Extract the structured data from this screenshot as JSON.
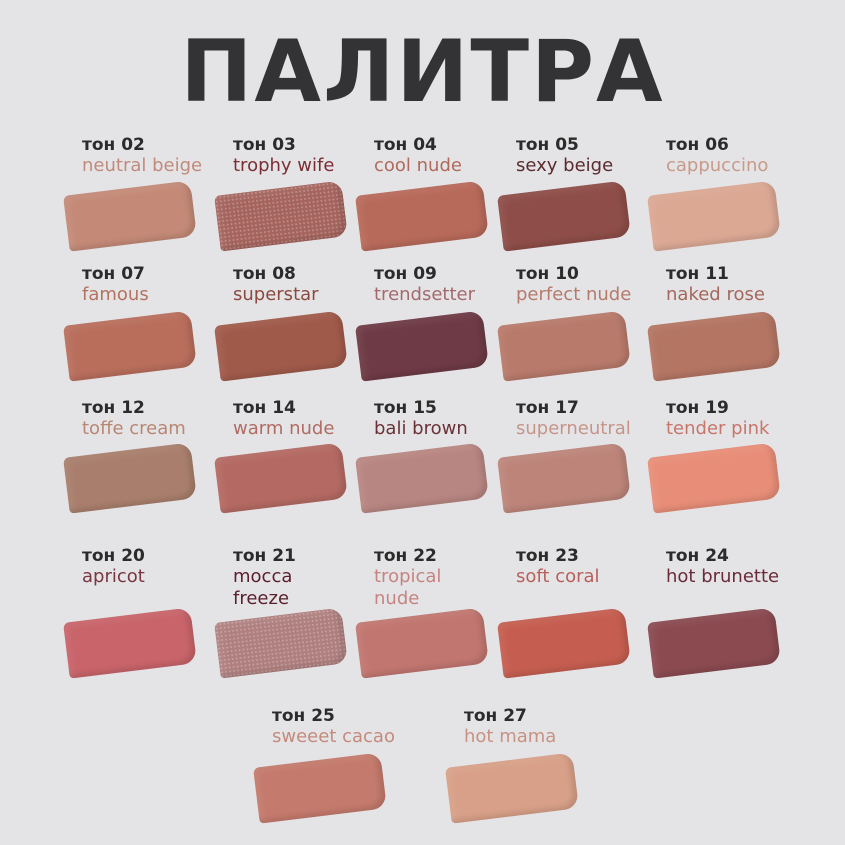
{
  "title": "ПАЛИТРА",
  "items": [
    {
      "tone": "тон 02",
      "name": "neutral beige",
      "name_color": "#c08a7c",
      "swatch": "#c48a77",
      "shimmer": false
    },
    {
      "tone": "тон 03",
      "name": "trophy wife",
      "name_color": "#7a2e34",
      "swatch": "#a5655e",
      "shimmer": true
    },
    {
      "tone": "тон 04",
      "name": "cool nude",
      "name_color": "#b06a5c",
      "swatch": "#b86a5a",
      "shimmer": false
    },
    {
      "tone": "тон 05",
      "name": "sexy beige",
      "name_color": "#5b2a2d",
      "swatch": "#8e4d48",
      "shimmer": false
    },
    {
      "tone": "тон 06",
      "name": "cappuccino",
      "name_color": "#c89a8a",
      "swatch": "#dba894",
      "shimmer": false
    },
    {
      "tone": "тон 07",
      "name": "famous",
      "name_color": "#b5735f",
      "swatch": "#b96e5c",
      "shimmer": false
    },
    {
      "tone": "тон 08",
      "name": "superstar",
      "name_color": "#8a4a40",
      "swatch": "#a05a4a",
      "shimmer": false
    },
    {
      "tone": "тон 09",
      "name": "trendsetter",
      "name_color": "#a36a6e",
      "swatch": "#6e3a45",
      "shimmer": false
    },
    {
      "tone": "тон 10",
      "name": "perfect nude",
      "name_color": "#b57a6a",
      "swatch": "#b87a6a",
      "shimmer": false
    },
    {
      "tone": "тон 11",
      "name": "naked rose",
      "name_color": "#a5675c",
      "swatch": "#b47563",
      "shimmer": false
    },
    {
      "tone": "тон 12",
      "name": "toffe cream",
      "name_color": "#b88672",
      "swatch": "#a97e6c",
      "shimmer": false
    },
    {
      "tone": "тон 14",
      "name": "warm nude",
      "name_color": "#b06b62",
      "swatch": "#b46a62",
      "shimmer": false
    },
    {
      "tone": "тон 15",
      "name": "bali brown",
      "name_color": "#6a3238",
      "swatch": "#b88682",
      "shimmer": false
    },
    {
      "tone": "тон 17",
      "name": "superneutral",
      "name_color": "#c6958a",
      "swatch": "#bd857a",
      "shimmer": false
    },
    {
      "tone": "тон 19",
      "name": "tender pink",
      "name_color": "#c8756a",
      "swatch": "#e88e78",
      "shimmer": false
    },
    {
      "tone": "тон 20",
      "name": "apricot",
      "name_color": "#7a3640",
      "swatch": "#c8646a",
      "shimmer": false
    },
    {
      "tone": "тон 21",
      "name": "mocca freeze",
      "name_color": "#5a1e2c",
      "swatch": "#b08080",
      "shimmer": true
    },
    {
      "tone": "тон 22",
      "name": "tropical nude",
      "name_color": "#c68480",
      "swatch": "#c27670",
      "shimmer": false
    },
    {
      "tone": "тон 23",
      "name": "soft coral",
      "name_color": "#b8605a",
      "swatch": "#c55e50",
      "shimmer": false
    },
    {
      "tone": "тон 24",
      "name": "hot brunette",
      "name_color": "#6a2a38",
      "swatch": "#8a4a50",
      "shimmer": false
    },
    {
      "tone": "тон 25",
      "name": "sweeet cacao",
      "name_color": "#c48a7c",
      "swatch": "#c47a6c",
      "shimmer": false
    },
    {
      "tone": "тон 27",
      "name": "hot mama",
      "name_color": "#c89282",
      "swatch": "#d8a088",
      "shimmer": false
    }
  ]
}
